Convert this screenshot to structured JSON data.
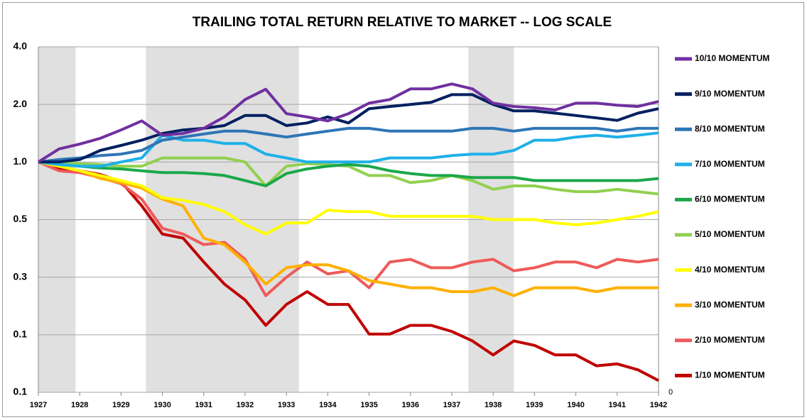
{
  "chart_data": {
    "type": "line",
    "title": "TRAILING TOTAL RETURN RELATIVE TO MARKET -- LOG SCALE",
    "log_scale": true,
    "grid": true,
    "legend": "right",
    "x": [
      1927,
      1927.5,
      1928,
      1928.5,
      1929,
      1929.5,
      1930,
      1930.5,
      1931,
      1931.5,
      1932,
      1932.5,
      1933,
      1933.5,
      1934,
      1934.5,
      1935,
      1935.5,
      1936,
      1936.5,
      1937,
      1937.5,
      1938,
      1938.5,
      1939,
      1939.5,
      1940,
      1940.5,
      1941,
      1941.5,
      1942
    ],
    "xlim": [
      1927,
      1942
    ],
    "xticks": [
      1927,
      1928,
      1929,
      1930,
      1931,
      1932,
      1933,
      1934,
      1935,
      1936,
      1937,
      1938,
      1939,
      1940,
      1941,
      1942
    ],
    "ylim": [
      0.0625,
      4
    ],
    "yticks": [
      {
        "value": 4,
        "label": "4.0"
      },
      {
        "value": 2,
        "label": "2.0"
      },
      {
        "value": 1,
        "label": "1.0"
      },
      0.5,
      {
        "value": 0.25,
        "label": "0.3"
      },
      {
        "value": 0.125,
        "label": "0.1"
      },
      {
        "value": 0.0625,
        "label": "0.1"
      }
    ],
    "y2lim": [
      0,
      1
    ],
    "y2ticks": [
      0
    ],
    "shaded_periods": [
      [
        1927,
        1927.9
      ],
      [
        1929.6,
        1933.3
      ],
      [
        1937.4,
        1938.5
      ]
    ],
    "series": [
      {
        "name": "10/10 MOMENTUM",
        "color": "#7030a0",
        "values": [
          1.0,
          1.17,
          1.24,
          1.33,
          1.47,
          1.64,
          1.38,
          1.41,
          1.5,
          1.72,
          2.12,
          2.4,
          1.79,
          1.72,
          1.64,
          1.79,
          2.03,
          2.12,
          2.41,
          2.41,
          2.56,
          2.41,
          2.03,
          1.95,
          1.92,
          1.87,
          2.03,
          2.03,
          1.98,
          1.95,
          2.07
        ]
      },
      {
        "name": "9/10 MOMENTUM",
        "color": "#002060",
        "values": [
          1.0,
          1.0,
          1.03,
          1.15,
          1.22,
          1.3,
          1.41,
          1.47,
          1.5,
          1.55,
          1.75,
          1.75,
          1.55,
          1.6,
          1.72,
          1.6,
          1.9,
          1.95,
          2.0,
          2.05,
          2.25,
          2.25,
          2.0,
          1.85,
          1.85,
          1.8,
          1.75,
          1.7,
          1.65,
          1.8,
          1.9
        ]
      },
      {
        "name": "8/10 MOMENTUM",
        "color": "#2e75b6",
        "values": [
          1.0,
          1.03,
          1.05,
          1.08,
          1.1,
          1.15,
          1.3,
          1.35,
          1.4,
          1.45,
          1.45,
          1.4,
          1.35,
          1.4,
          1.45,
          1.5,
          1.5,
          1.45,
          1.45,
          1.45,
          1.45,
          1.5,
          1.5,
          1.45,
          1.5,
          1.5,
          1.5,
          1.5,
          1.45,
          1.5,
          1.5
        ]
      },
      {
        "name": "7/10 MOMENTUM",
        "color": "#1fb0e8",
        "values": [
          1.0,
          0.97,
          0.95,
          0.95,
          1.0,
          1.05,
          1.38,
          1.3,
          1.3,
          1.25,
          1.25,
          1.1,
          1.05,
          1.0,
          1.0,
          1.0,
          1.0,
          1.05,
          1.05,
          1.05,
          1.08,
          1.1,
          1.1,
          1.15,
          1.3,
          1.3,
          1.35,
          1.38,
          1.35,
          1.38,
          1.42
        ]
      },
      {
        "name": "6/10 MOMENTUM",
        "color": "#1aa84a",
        "values": [
          1.0,
          0.97,
          0.95,
          0.93,
          0.92,
          0.9,
          0.88,
          0.88,
          0.87,
          0.85,
          0.8,
          0.75,
          0.87,
          0.92,
          0.95,
          0.97,
          0.95,
          0.9,
          0.87,
          0.85,
          0.85,
          0.83,
          0.83,
          0.83,
          0.8,
          0.8,
          0.8,
          0.8,
          0.8,
          0.8,
          0.82
        ]
      },
      {
        "name": "5/10 MOMENTUM",
        "color": "#92d050",
        "values": [
          1.0,
          1.0,
          0.98,
          0.97,
          0.95,
          0.95,
          1.05,
          1.05,
          1.05,
          1.05,
          1.0,
          0.75,
          0.95,
          0.98,
          0.97,
          0.95,
          0.85,
          0.85,
          0.78,
          0.8,
          0.85,
          0.8,
          0.72,
          0.75,
          0.75,
          0.72,
          0.7,
          0.7,
          0.72,
          0.7,
          0.68
        ]
      },
      {
        "name": "4/10 MOMENTUM",
        "color": "#ffff00",
        "values": [
          1.0,
          0.95,
          0.9,
          0.85,
          0.8,
          0.75,
          0.65,
          0.63,
          0.6,
          0.55,
          0.47,
          0.42,
          0.48,
          0.48,
          0.56,
          0.55,
          0.55,
          0.52,
          0.52,
          0.52,
          0.52,
          0.52,
          0.5,
          0.5,
          0.5,
          0.48,
          0.47,
          0.48,
          0.5,
          0.52,
          0.55
        ]
      },
      {
        "name": "3/10 MOMENTUM",
        "color": "#ffb000",
        "values": [
          1.0,
          0.95,
          0.9,
          0.82,
          0.78,
          0.73,
          0.64,
          0.59,
          0.4,
          0.37,
          0.3,
          0.23,
          0.28,
          0.29,
          0.29,
          0.27,
          0.24,
          0.23,
          0.22,
          0.22,
          0.21,
          0.21,
          0.22,
          0.2,
          0.22,
          0.22,
          0.22,
          0.21,
          0.22,
          0.22,
          0.22
        ]
      },
      {
        "name": "2/10 MOMENTUM",
        "color": "#ef5a5a",
        "values": [
          1.0,
          0.9,
          0.88,
          0.83,
          0.77,
          0.64,
          0.45,
          0.42,
          0.37,
          0.38,
          0.31,
          0.2,
          0.25,
          0.3,
          0.26,
          0.27,
          0.22,
          0.3,
          0.31,
          0.28,
          0.28,
          0.3,
          0.31,
          0.27,
          0.28,
          0.3,
          0.3,
          0.28,
          0.31,
          0.3,
          0.31
        ]
      },
      {
        "name": "1/10 MOMENTUM",
        "color": "#c00000",
        "values": [
          1.0,
          0.92,
          0.9,
          0.86,
          0.79,
          0.59,
          0.42,
          0.4,
          0.3,
          0.23,
          0.19,
          0.14,
          0.18,
          0.21,
          0.18,
          0.18,
          0.126,
          0.126,
          0.14,
          0.14,
          0.13,
          0.116,
          0.098,
          0.116,
          0.11,
          0.098,
          0.098,
          0.086,
          0.088,
          0.082,
          0.072
        ]
      }
    ]
  }
}
